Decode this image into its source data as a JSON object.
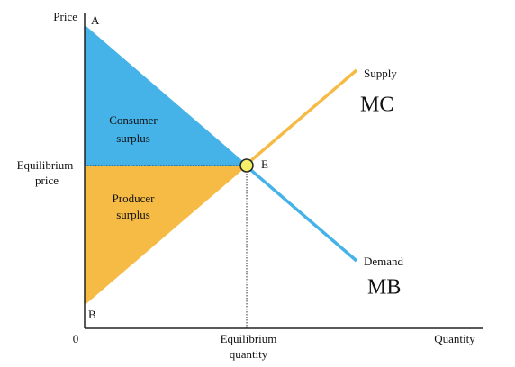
{
  "axes": {
    "y_label": "Price",
    "x_label": "Quantity",
    "origin": "0"
  },
  "points": {
    "a": "A",
    "b": "B",
    "e": "E"
  },
  "regions": {
    "consumer_surplus": [
      "Consumer",
      "surplus"
    ],
    "producer_surplus": [
      "Producer",
      "surplus"
    ]
  },
  "equilibrium": {
    "price": [
      "Equilibrium",
      "price"
    ],
    "quantity": [
      "Equilibrium",
      "quantity"
    ]
  },
  "curves": {
    "supply": {
      "name": "Supply",
      "symbol": "MC"
    },
    "demand": {
      "name": "Demand",
      "symbol": "MB"
    }
  }
}
